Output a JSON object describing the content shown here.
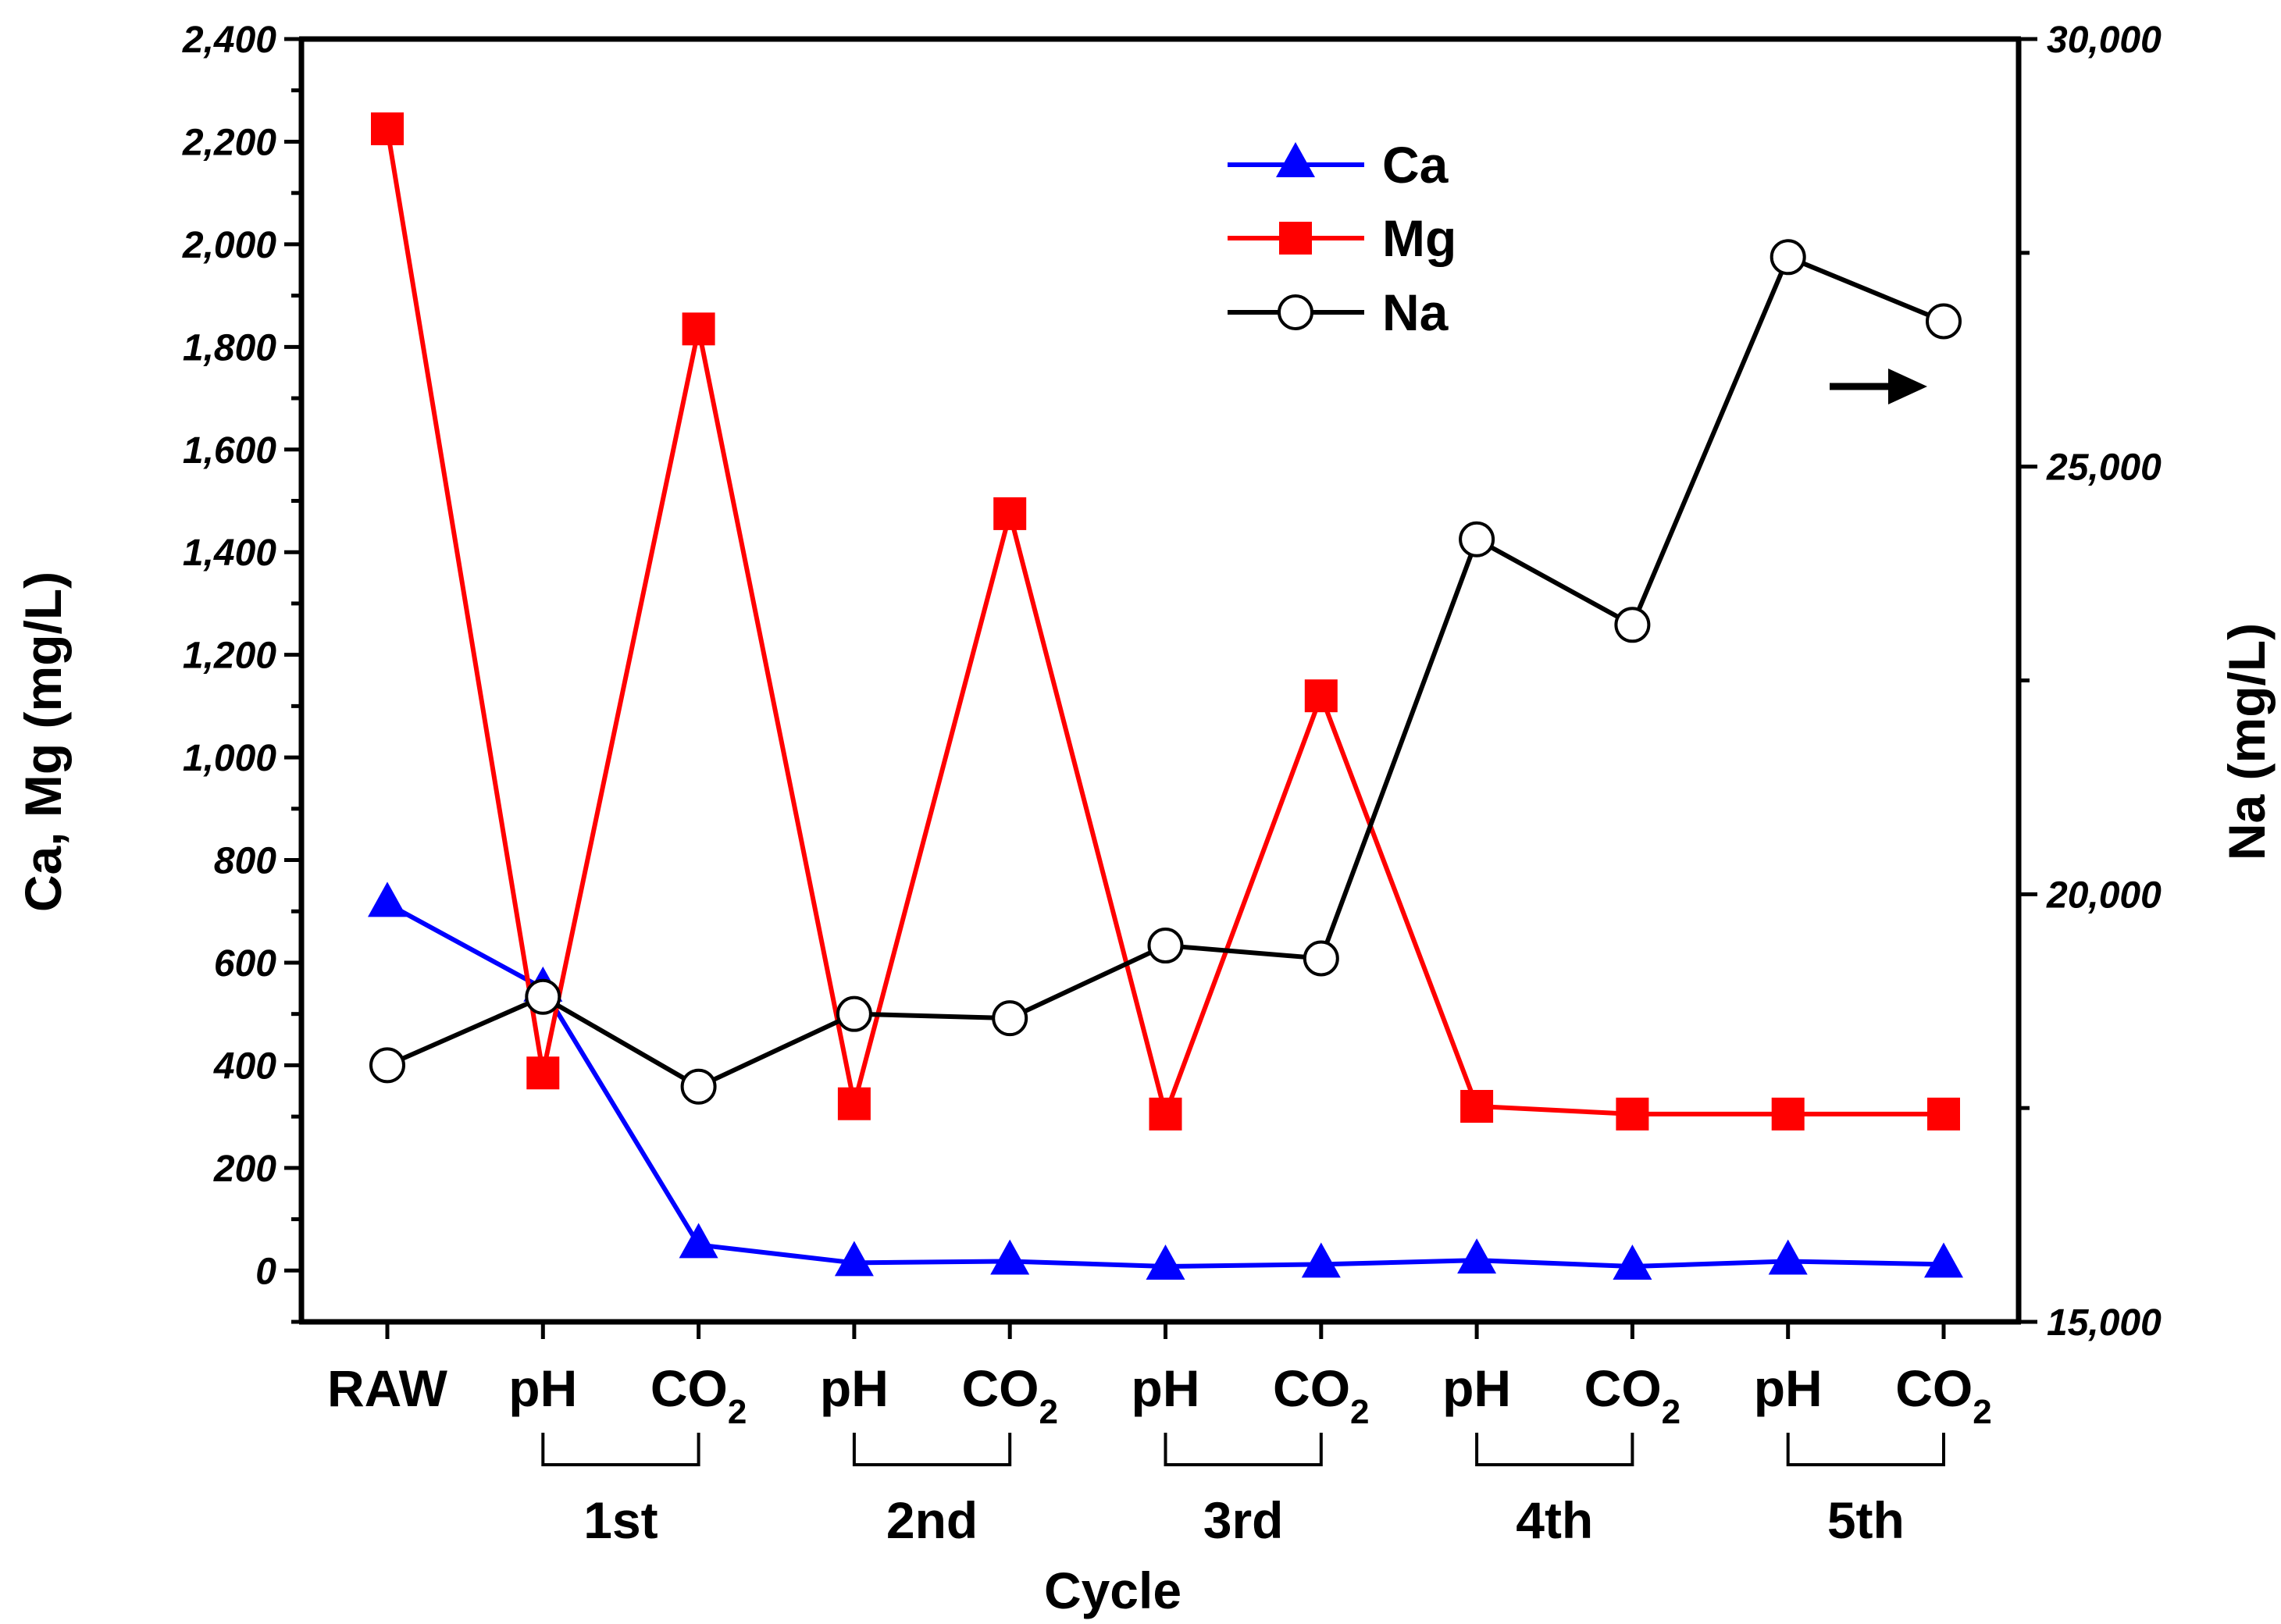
{
  "chart_data": {
    "type": "line",
    "categories": [
      "RAW",
      "pH",
      "CO2",
      "pH",
      "CO2",
      "pH",
      "CO2",
      "pH",
      "CO2",
      "pH",
      "CO2"
    ],
    "category_labels": [
      {
        "main": "RAW",
        "sub": ""
      },
      {
        "main": "pH",
        "sub": ""
      },
      {
        "main": "CO",
        "sub": "2"
      },
      {
        "main": "pH",
        "sub": ""
      },
      {
        "main": "CO",
        "sub": "2"
      },
      {
        "main": "pH",
        "sub": ""
      },
      {
        "main": "CO",
        "sub": "2"
      },
      {
        "main": "pH",
        "sub": ""
      },
      {
        "main": "CO",
        "sub": "2"
      },
      {
        "main": "pH",
        "sub": ""
      },
      {
        "main": "CO",
        "sub": "2"
      }
    ],
    "cycles": [
      {
        "label": "1st",
        "from": 1,
        "to": 2
      },
      {
        "label": "2nd",
        "from": 3,
        "to": 4
      },
      {
        "label": "3rd",
        "from": 5,
        "to": 6
      },
      {
        "label": "4th",
        "from": 7,
        "to": 8
      },
      {
        "label": "5th",
        "from": 9,
        "to": 10
      }
    ],
    "xlabel": "Cycle",
    "ylabel": "Ca, Mg (mg/L)",
    "y2label": "Na (mg/L)",
    "ylim": [
      -100,
      2400
    ],
    "yticks": [
      0,
      200,
      400,
      600,
      800,
      1000,
      1200,
      1400,
      1600,
      1800,
      2000,
      2200,
      2400
    ],
    "ytick_labels": [
      "0",
      "200",
      "400",
      "600",
      "800",
      "1,000",
      "1,200",
      "1,400",
      "1,600",
      "1,800",
      "2,000",
      "2,200",
      "2,400"
    ],
    "y2lim": [
      15000,
      30000
    ],
    "y2ticks": [
      15000,
      20000,
      25000,
      30000
    ],
    "y2tick_labels": [
      "15,000",
      "20,000",
      "25,000",
      "30,000"
    ],
    "series": [
      {
        "name": "Ca",
        "axis": "left",
        "color": "#0000ff",
        "marker": "triangle",
        "values": [
          715,
          550,
          50,
          15,
          18,
          8,
          12,
          20,
          8,
          18,
          12
        ]
      },
      {
        "name": "Mg",
        "axis": "left",
        "color": "#ff0000",
        "marker": "square",
        "values": [
          2225,
          385,
          1835,
          325,
          1475,
          305,
          1120,
          320,
          305,
          305,
          305
        ]
      },
      {
        "name": "Na",
        "axis": "right",
        "color": "#000000",
        "marker": "circle",
        "values": [
          18000,
          18800,
          17750,
          18600,
          18550,
          19400,
          19250,
          24150,
          23150,
          27450,
          26700
        ]
      }
    ],
    "legend": [
      "Ca",
      "Mg",
      "Na"
    ],
    "legend_position": "top-right",
    "annotation": "right-arrow-to-Na-axis"
  }
}
